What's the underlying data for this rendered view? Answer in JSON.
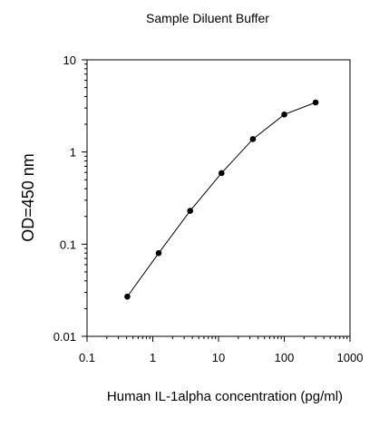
{
  "chart_data": {
    "type": "line",
    "title": "Sample Diluent Buffer",
    "xlabel": "Human IL-1alpha concentration (pg/ml)",
    "ylabel": "OD=450 nm",
    "x_scale": "log",
    "y_scale": "log",
    "xlim": [
      0.1,
      1000
    ],
    "ylim": [
      0.01,
      10
    ],
    "x_ticks": [
      "0.1",
      "1",
      "10",
      "100",
      "1000"
    ],
    "y_ticks": [
      "0.01",
      "0.1",
      "1",
      "10"
    ],
    "grid": false,
    "series": [
      {
        "x": [
          0.41,
          1.23,
          3.7,
          11.1,
          33.3,
          100,
          300
        ],
        "y": [
          0.027,
          0.08,
          0.23,
          0.59,
          1.38,
          2.55,
          3.45
        ]
      }
    ]
  },
  "colors": {
    "line": "#000000",
    "marker": "#000000",
    "axis": "#000000"
  }
}
